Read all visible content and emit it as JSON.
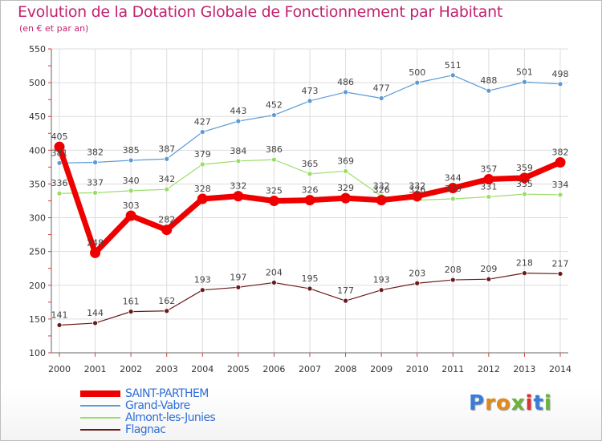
{
  "title": "Evolution de la Dotation Globale de Fonctionnement par Habitant",
  "subtitle": "(en € et par an)",
  "logo": "Proxiti",
  "colors": {
    "title": "#c2226f",
    "grid": "#dddddd",
    "axis_marks": "#dc3c3c",
    "legend_text": "#2e6fd6"
  },
  "chart_data": {
    "type": "line",
    "x": [
      2000,
      2001,
      2002,
      2003,
      2004,
      2005,
      2006,
      2007,
      2008,
      2009,
      2010,
      2011,
      2012,
      2013,
      2014
    ],
    "ylim": [
      100,
      550
    ],
    "yticks": [
      100,
      150,
      200,
      250,
      300,
      350,
      400,
      450,
      500,
      550
    ],
    "grid": true,
    "legend_position": "bottom-left",
    "series": [
      {
        "name": "SAINT-PARTHEM",
        "color": "#ee0000",
        "style": "bold",
        "values": [
          405,
          248,
          303,
          282,
          328,
          332,
          325,
          326,
          329,
          326,
          332,
          344,
          357,
          359,
          382
        ]
      },
      {
        "name": "Grand-Vabre",
        "color": "#5b9bd5",
        "style": "thin",
        "values": [
          381,
          382,
          385,
          387,
          427,
          443,
          452,
          473,
          486,
          477,
          500,
          511,
          488,
          501,
          498
        ]
      },
      {
        "name": "Almont-les-Junies",
        "color": "#99dd66",
        "style": "thin",
        "values": [
          336,
          337,
          340,
          342,
          379,
          384,
          386,
          365,
          369,
          332,
          326,
          328,
          331,
          335,
          334
        ]
      },
      {
        "name": "Flagnac",
        "color": "#6b1a1a",
        "style": "thin",
        "values": [
          141,
          144,
          161,
          162,
          193,
          197,
          204,
          195,
          177,
          193,
          203,
          208,
          209,
          218,
          217
        ]
      }
    ]
  }
}
